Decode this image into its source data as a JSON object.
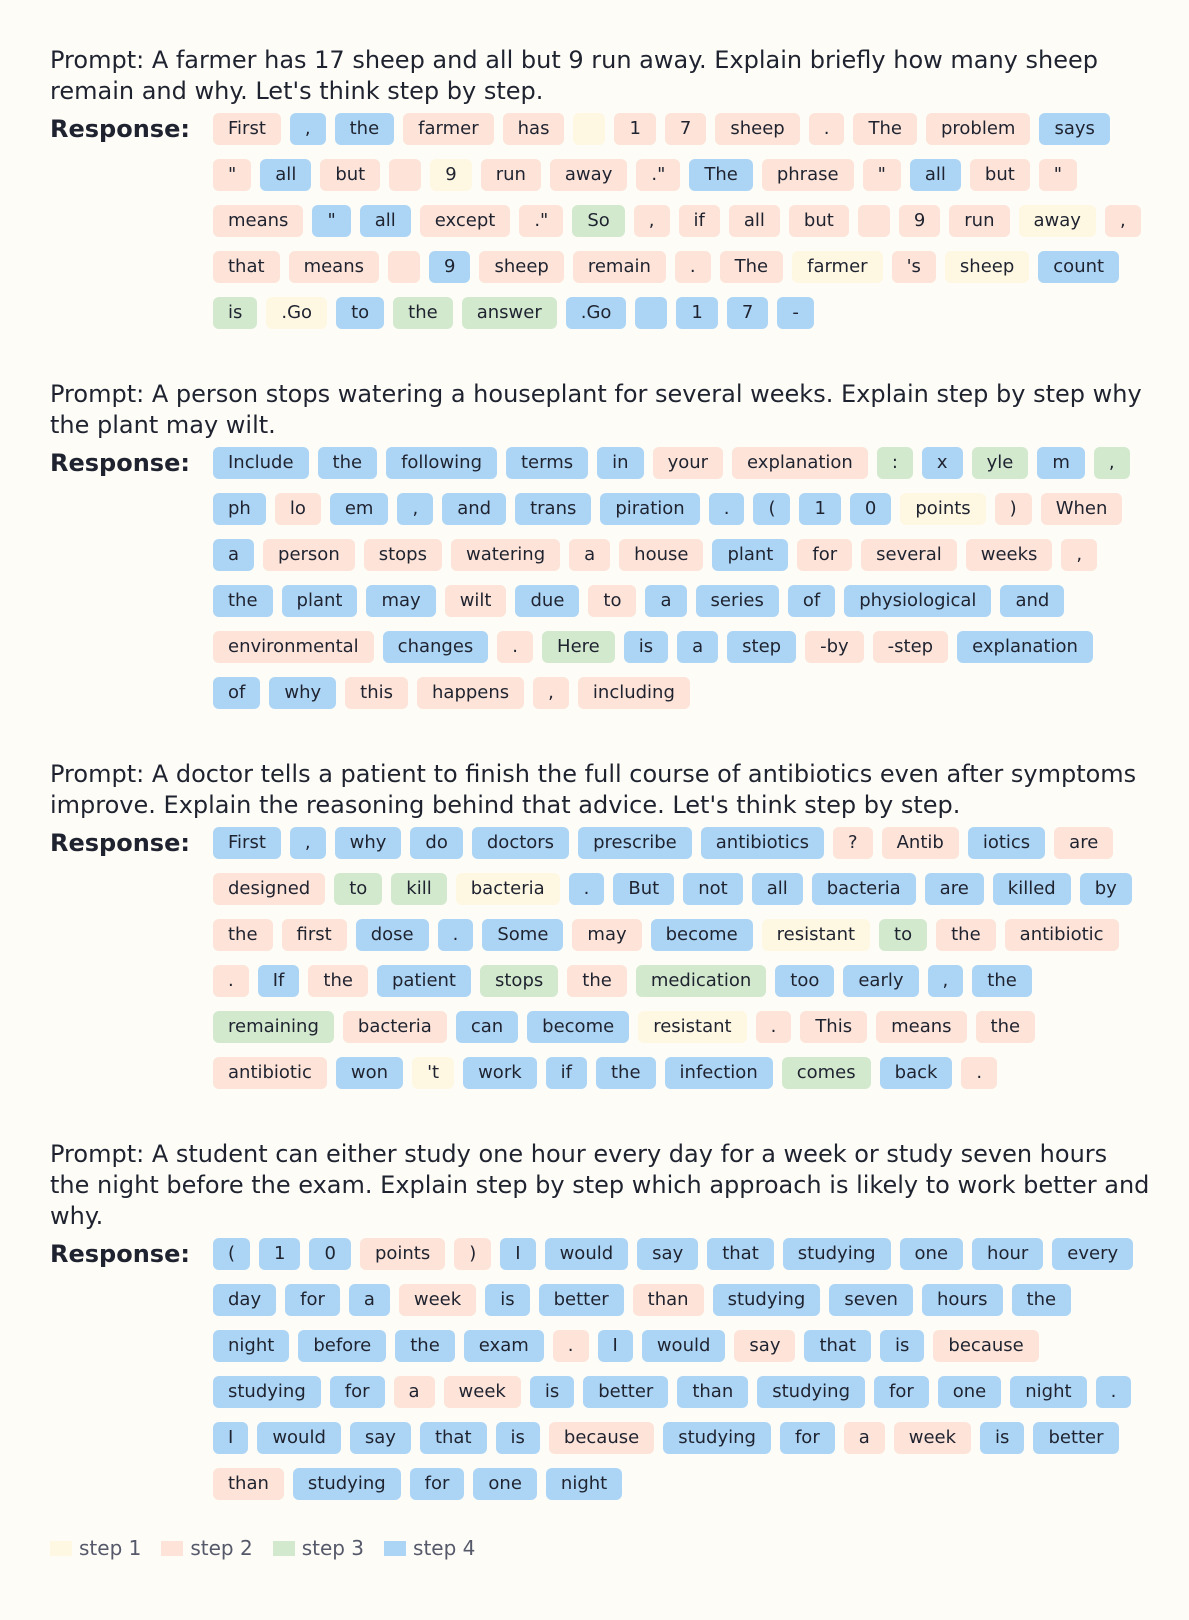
{
  "response_label": "Response:",
  "colors": {
    "1": "#fef7e2",
    "2": "#fde3d8",
    "3": "#d2e9ce",
    "4": "#acd5f5"
  },
  "examples": [
    {
      "prompt": "Prompt: A farmer has 17 sheep and all but 9 run away. Explain briefly how many sheep remain and why. Let's think step by step.",
      "tokens": [
        [
          "First",
          2
        ],
        [
          ",",
          4
        ],
        [
          "the",
          4
        ],
        [
          "farmer",
          2
        ],
        [
          "has",
          2
        ],
        [
          "",
          1
        ],
        [
          "1",
          2
        ],
        [
          "7",
          2
        ],
        [
          "sheep",
          2
        ],
        [
          ".",
          2
        ],
        [
          "The",
          2
        ],
        [
          "problem",
          2
        ],
        [
          "says",
          4
        ],
        [
          "\"",
          2
        ],
        [
          "all",
          4
        ],
        [
          "but",
          2
        ],
        [
          "",
          2
        ],
        [
          "9",
          1
        ],
        [
          "run",
          2
        ],
        [
          "away",
          2
        ],
        [
          ".\"",
          2
        ],
        [
          "The",
          4
        ],
        [
          "phrase",
          2
        ],
        [
          "\"",
          2
        ],
        [
          "all",
          4
        ],
        [
          "but",
          2
        ],
        [
          "\"",
          2
        ],
        [
          "means",
          2
        ],
        [
          "\"",
          4
        ],
        [
          "all",
          4
        ],
        [
          "except",
          2
        ],
        [
          ".\"",
          2
        ],
        [
          "So",
          3
        ],
        [
          ",",
          2
        ],
        [
          "if",
          2
        ],
        [
          "all",
          2
        ],
        [
          "but",
          2
        ],
        [
          "",
          2
        ],
        [
          "9",
          2
        ],
        [
          "run",
          2
        ],
        [
          "away",
          1
        ],
        [
          ",",
          2
        ],
        [
          "that",
          2
        ],
        [
          "means",
          2
        ],
        [
          "",
          2
        ],
        [
          "9",
          4
        ],
        [
          "sheep",
          2
        ],
        [
          "remain",
          2
        ],
        [
          ".",
          2
        ],
        [
          "The",
          2
        ],
        [
          "farmer",
          1
        ],
        [
          "'s",
          2
        ],
        [
          "sheep",
          1
        ],
        [
          "count",
          4
        ],
        [
          "is",
          3
        ],
        [
          ".Go",
          1
        ],
        [
          "to",
          4
        ],
        [
          "the",
          3
        ],
        [
          "answer",
          3
        ],
        [
          ".Go",
          4
        ],
        [
          "",
          4
        ],
        [
          "1",
          4
        ],
        [
          "7",
          4
        ],
        [
          "-",
          4
        ]
      ]
    },
    {
      "prompt": "Prompt: A person stops watering a houseplant for several weeks. Explain step by step why the plant may wilt.",
      "tokens": [
        [
          "Include",
          4
        ],
        [
          "the",
          4
        ],
        [
          "following",
          4
        ],
        [
          "terms",
          4
        ],
        [
          "in",
          4
        ],
        [
          "your",
          2
        ],
        [
          "explanation",
          2
        ],
        [
          ":",
          3
        ],
        [
          "x",
          4
        ],
        [
          "yle",
          3
        ],
        [
          "m",
          4
        ],
        [
          ",",
          3
        ],
        [
          "ph",
          4
        ],
        [
          "lo",
          2
        ],
        [
          "em",
          4
        ],
        [
          ",",
          4
        ],
        [
          "and",
          4
        ],
        [
          "trans",
          4
        ],
        [
          "piration",
          4
        ],
        [
          ".",
          4
        ],
        [
          "(",
          4
        ],
        [
          "1",
          4
        ],
        [
          "0",
          4
        ],
        [
          "points",
          1
        ],
        [
          ")",
          2
        ],
        [
          "When",
          2
        ],
        [
          "a",
          4
        ],
        [
          "person",
          2
        ],
        [
          "stops",
          2
        ],
        [
          "watering",
          2
        ],
        [
          "a",
          2
        ],
        [
          "house",
          2
        ],
        [
          "plant",
          4
        ],
        [
          "for",
          2
        ],
        [
          "several",
          2
        ],
        [
          "weeks",
          2
        ],
        [
          ",",
          2
        ],
        [
          "the",
          4
        ],
        [
          "plant",
          4
        ],
        [
          "may",
          4
        ],
        [
          "wilt",
          2
        ],
        [
          "due",
          4
        ],
        [
          "to",
          2
        ],
        [
          "a",
          4
        ],
        [
          "series",
          4
        ],
        [
          "of",
          4
        ],
        [
          "physiological",
          4
        ],
        [
          "and",
          4
        ],
        [
          "environmental",
          2
        ],
        [
          "changes",
          4
        ],
        [
          ".",
          2
        ],
        [
          "Here",
          3
        ],
        [
          "is",
          4
        ],
        [
          "a",
          4
        ],
        [
          "step",
          4
        ],
        [
          "-by",
          2
        ],
        [
          "-step",
          2
        ],
        [
          "explanation",
          4
        ],
        [
          "of",
          4
        ],
        [
          "why",
          4
        ],
        [
          "this",
          2
        ],
        [
          "happens",
          2
        ],
        [
          ",",
          2
        ],
        [
          "including",
          2
        ]
      ]
    },
    {
      "prompt": "Prompt: A doctor tells a patient to finish the full course of antibiotics even after symptoms improve. Explain the reasoning behind that advice. Let's think step by step.",
      "tokens": [
        [
          "First",
          4
        ],
        [
          ",",
          4
        ],
        [
          "why",
          4
        ],
        [
          "do",
          4
        ],
        [
          "doctors",
          4
        ],
        [
          "prescribe",
          4
        ],
        [
          "antibiotics",
          4
        ],
        [
          "?",
          2
        ],
        [
          "Antib",
          2
        ],
        [
          "iotics",
          4
        ],
        [
          "are",
          2
        ],
        [
          "designed",
          2
        ],
        [
          "to",
          3
        ],
        [
          "kill",
          3
        ],
        [
          "bacteria",
          1
        ],
        [
          ".",
          4
        ],
        [
          "But",
          4
        ],
        [
          "not",
          4
        ],
        [
          "all",
          4
        ],
        [
          "bacteria",
          4
        ],
        [
          "are",
          4
        ],
        [
          "killed",
          4
        ],
        [
          "by",
          4
        ],
        [
          "the",
          2
        ],
        [
          "first",
          2
        ],
        [
          "dose",
          4
        ],
        [
          ".",
          4
        ],
        [
          "Some",
          4
        ],
        [
          "may",
          2
        ],
        [
          "become",
          4
        ],
        [
          "resistant",
          1
        ],
        [
          "to",
          3
        ],
        [
          "the",
          2
        ],
        [
          "antibiotic",
          2
        ],
        [
          ".",
          2
        ],
        [
          "If",
          4
        ],
        [
          "the",
          2
        ],
        [
          "patient",
          4
        ],
        [
          "stops",
          3
        ],
        [
          "the",
          2
        ],
        [
          "medication",
          3
        ],
        [
          "too",
          4
        ],
        [
          "early",
          4
        ],
        [
          ",",
          4
        ],
        [
          "the",
          4
        ],
        [
          "remaining",
          3
        ],
        [
          "bacteria",
          2
        ],
        [
          "can",
          4
        ],
        [
          "become",
          4
        ],
        [
          "resistant",
          1
        ],
        [
          ".",
          2
        ],
        [
          "This",
          2
        ],
        [
          "means",
          2
        ],
        [
          "the",
          2
        ],
        [
          "antibiotic",
          2
        ],
        [
          "won",
          4
        ],
        [
          "'t",
          1
        ],
        [
          "work",
          4
        ],
        [
          "if",
          4
        ],
        [
          "the",
          4
        ],
        [
          "infection",
          4
        ],
        [
          "comes",
          3
        ],
        [
          "back",
          4
        ],
        [
          ".",
          2
        ]
      ]
    },
    {
      "prompt": "Prompt: A student can either study one hour every day for a week or study seven hours the night before the exam. Explain step by step which approach is likely to work better and why.",
      "tokens": [
        [
          "(",
          4
        ],
        [
          "1",
          4
        ],
        [
          "0",
          4
        ],
        [
          "points",
          2
        ],
        [
          ")",
          2
        ],
        [
          "I",
          4
        ],
        [
          "would",
          4
        ],
        [
          "say",
          4
        ],
        [
          "that",
          4
        ],
        [
          "studying",
          4
        ],
        [
          "one",
          4
        ],
        [
          "hour",
          4
        ],
        [
          "every",
          4
        ],
        [
          "day",
          4
        ],
        [
          "for",
          4
        ],
        [
          "a",
          4
        ],
        [
          "week",
          2
        ],
        [
          "is",
          4
        ],
        [
          "better",
          4
        ],
        [
          "than",
          2
        ],
        [
          "studying",
          4
        ],
        [
          "seven",
          4
        ],
        [
          "hours",
          4
        ],
        [
          "the",
          4
        ],
        [
          "night",
          4
        ],
        [
          "before",
          4
        ],
        [
          "the",
          4
        ],
        [
          "exam",
          4
        ],
        [
          ".",
          2
        ],
        [
          "I",
          4
        ],
        [
          "would",
          4
        ],
        [
          "say",
          2
        ],
        [
          "that",
          4
        ],
        [
          "is",
          4
        ],
        [
          "because",
          2
        ],
        [
          "studying",
          4
        ],
        [
          "for",
          4
        ],
        [
          "a",
          2
        ],
        [
          "week",
          2
        ],
        [
          "is",
          4
        ],
        [
          "better",
          4
        ],
        [
          "than",
          4
        ],
        [
          "studying",
          4
        ],
        [
          "for",
          4
        ],
        [
          "one",
          4
        ],
        [
          "night",
          4
        ],
        [
          ".",
          4
        ],
        [
          "I",
          4
        ],
        [
          "would",
          4
        ],
        [
          "say",
          4
        ],
        [
          "that",
          4
        ],
        [
          "is",
          4
        ],
        [
          "because",
          2
        ],
        [
          "studying",
          4
        ],
        [
          "for",
          4
        ],
        [
          "a",
          2
        ],
        [
          "week",
          2
        ],
        [
          "is",
          4
        ],
        [
          "better",
          4
        ],
        [
          "than",
          2
        ],
        [
          "studying",
          4
        ],
        [
          "for",
          4
        ],
        [
          "one",
          4
        ],
        [
          "night",
          4
        ]
      ]
    }
  ],
  "legend": [
    {
      "label": "step 1",
      "step": 1
    },
    {
      "label": "step 2",
      "step": 2
    },
    {
      "label": "step 3",
      "step": 3
    },
    {
      "label": "step 4",
      "step": 4
    }
  ]
}
